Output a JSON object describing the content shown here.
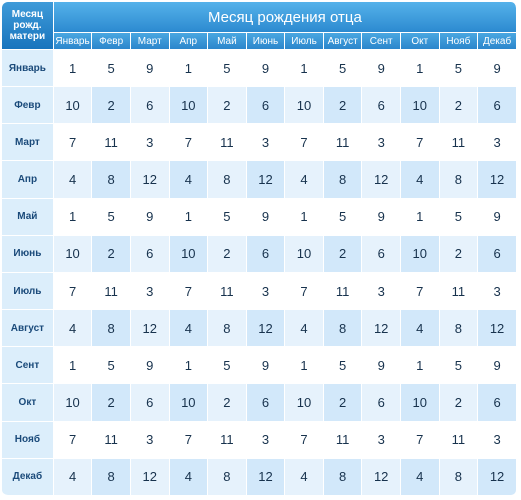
{
  "corner_label": "Месяц рожд. матери",
  "title": "Месяц рождения отца",
  "columns": [
    "Январь",
    "Февр",
    "Март",
    "Апр",
    "Май",
    "Июнь",
    "Июль",
    "Август",
    "Сент",
    "Окт",
    "Нояб",
    "Декаб"
  ],
  "rows": [
    {
      "label": "Январь",
      "values": [
        1,
        5,
        9,
        1,
        5,
        9,
        1,
        5,
        9,
        1,
        5,
        9
      ]
    },
    {
      "label": "Февр",
      "values": [
        10,
        2,
        6,
        10,
        2,
        6,
        10,
        2,
        6,
        10,
        2,
        6
      ]
    },
    {
      "label": "Март",
      "values": [
        7,
        11,
        3,
        7,
        11,
        3,
        7,
        11,
        3,
        7,
        11,
        3
      ]
    },
    {
      "label": "Апр",
      "values": [
        4,
        8,
        12,
        4,
        8,
        12,
        4,
        8,
        12,
        4,
        8,
        12
      ]
    },
    {
      "label": "Май",
      "values": [
        1,
        5,
        9,
        1,
        5,
        9,
        1,
        5,
        9,
        1,
        5,
        9
      ]
    },
    {
      "label": "Июнь",
      "values": [
        10,
        2,
        6,
        10,
        2,
        6,
        10,
        2,
        6,
        10,
        2,
        6
      ]
    },
    {
      "label": "Июль",
      "values": [
        7,
        11,
        3,
        7,
        11,
        3,
        7,
        11,
        3,
        7,
        11,
        3
      ]
    },
    {
      "label": "Август",
      "values": [
        4,
        8,
        12,
        4,
        8,
        12,
        4,
        8,
        12,
        4,
        8,
        12
      ]
    },
    {
      "label": "Сент",
      "values": [
        1,
        5,
        9,
        1,
        5,
        9,
        1,
        5,
        9,
        1,
        5,
        9
      ]
    },
    {
      "label": "Окт",
      "values": [
        10,
        2,
        6,
        10,
        2,
        6,
        10,
        2,
        6,
        10,
        2,
        6
      ]
    },
    {
      "label": "Нояб",
      "values": [
        7,
        11,
        3,
        7,
        11,
        3,
        7,
        11,
        3,
        7,
        11,
        3
      ]
    },
    {
      "label": "Декаб",
      "values": [
        4,
        8,
        12,
        4,
        8,
        12,
        4,
        8,
        12,
        4,
        8,
        12
      ]
    }
  ]
}
